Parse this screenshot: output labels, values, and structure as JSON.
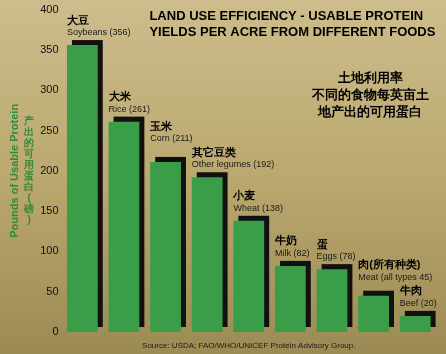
{
  "chart_data": {
    "type": "bar",
    "title": "LAND USE EFFICIENCY - USABLE PROTEIN YIELDS PER ACRE FROM DIFFERENT FOODS",
    "subtitle": [
      "土地利用率",
      "不同的食物每英亩土",
      "地产出的可用蛋白"
    ],
    "ylabel": "Pounds of Usable Protein",
    "ylabel_zh": "产出的可用蛋白(磅)",
    "categories": [
      "Soybeans (356)",
      "Rice (261)",
      "Corn (211)",
      "Other legumes (192)",
      "Wheat (138)",
      "Milk (82)",
      "Eggs (78)",
      "Meat (all types 45)",
      "Beef (20)"
    ],
    "categories_zh": [
      "大豆",
      "大米",
      "玉米",
      "其它豆类",
      "小麦",
      "牛奶",
      "蛋",
      "肉(所有种类)",
      "牛肉"
    ],
    "values": [
      356,
      261,
      211,
      192,
      138,
      82,
      78,
      45,
      20
    ],
    "color": "#3a9e48",
    "ylim": [
      0,
      400
    ],
    "yticks": [
      0,
      50,
      100,
      150,
      200,
      250,
      300,
      350,
      400
    ],
    "grid": false,
    "tick_labels": "y",
    "source": "Source: USDA; FAO/WHO/UNICEF Protein Advisory Group."
  }
}
